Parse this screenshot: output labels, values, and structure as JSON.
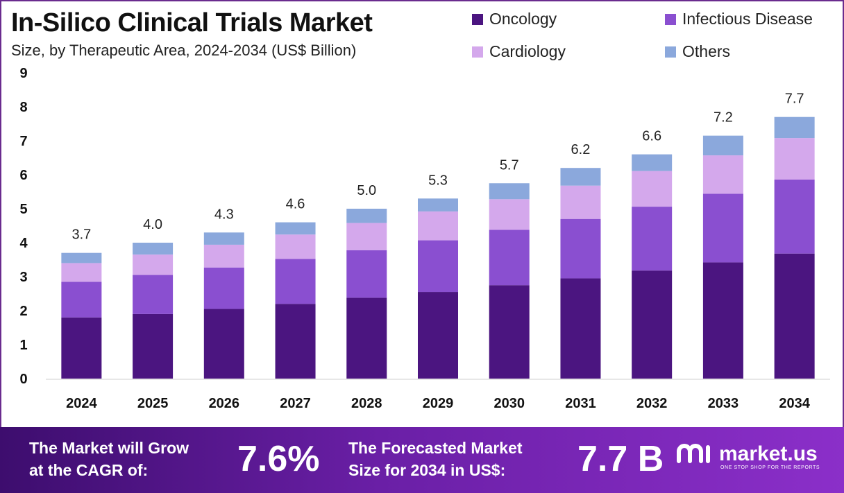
{
  "title": "In-Silico Clinical Trials Market",
  "subtitle": "Size, by Therapeutic Area, 2024-2034 (US$ Billion)",
  "legend": [
    {
      "label": "Oncology",
      "color": "#4b1580"
    },
    {
      "label": "Infectious Disease",
      "color": "#8a4fd0"
    },
    {
      "label": "Cardiology",
      "color": "#d4a8ec"
    },
    {
      "label": "Others",
      "color": "#8ba8dc"
    }
  ],
  "chart_data": {
    "type": "bar",
    "stacked": true,
    "title": "In-Silico Clinical Trials Market",
    "categories": [
      "2024",
      "2025",
      "2026",
      "2027",
      "2028",
      "2029",
      "2030",
      "2031",
      "2032",
      "2033",
      "2034"
    ],
    "series": [
      {
        "name": "Oncology",
        "color": "#4b1580",
        "values": [
          1.8,
          1.9,
          2.05,
          2.2,
          2.38,
          2.55,
          2.75,
          2.95,
          3.18,
          3.42,
          3.68
        ]
      },
      {
        "name": "Infectious Disease",
        "color": "#8a4fd0",
        "values": [
          1.05,
          1.15,
          1.22,
          1.32,
          1.4,
          1.52,
          1.63,
          1.75,
          1.88,
          2.02,
          2.18
        ]
      },
      {
        "name": "Cardiology",
        "color": "#d4a8ec",
        "values": [
          0.55,
          0.6,
          0.67,
          0.72,
          0.8,
          0.85,
          0.9,
          0.98,
          1.05,
          1.13,
          1.22
        ]
      },
      {
        "name": "Others",
        "color": "#8ba8dc",
        "values": [
          0.3,
          0.35,
          0.36,
          0.36,
          0.42,
          0.38,
          0.47,
          0.52,
          0.49,
          0.58,
          0.62
        ]
      }
    ],
    "totals": [
      "3.7",
      "4.0",
      "4.3",
      "4.6",
      "5.0",
      "5.3",
      "5.7",
      "6.2",
      "6.6",
      "7.2",
      "7.7"
    ],
    "yticks": [
      "0",
      "1",
      "2",
      "3",
      "4",
      "5",
      "6",
      "7",
      "8",
      "9"
    ],
    "ylim": [
      0,
      9
    ],
    "xlabel": "",
    "ylabel": ""
  },
  "footer": {
    "cagr_label_line1": "The Market will Grow",
    "cagr_label_line2": "at the CAGR of:",
    "cagr_value": "7.6%",
    "forecast_label_line1": "The Forecasted Market",
    "forecast_label_line2": "Size for 2034 in US$:",
    "forecast_value": "7.7 B",
    "brand": "market.us",
    "tagline": "ONE STOP SHOP FOR THE REPORTS"
  }
}
